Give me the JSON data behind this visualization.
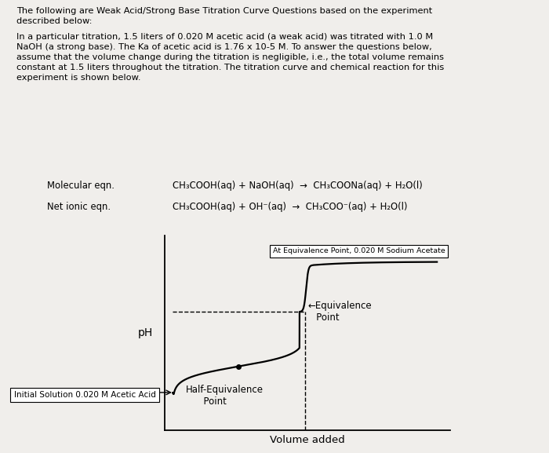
{
  "title_text": "The following are Weak Acid/Strong Base Titration Curve Questions based on the experiment\ndescribed below:",
  "body_text": "In a particular titration, 1.5 liters of 0.020 M acetic acid (a weak acid) was titrated with 1.0 M\nNaOH (a strong base). The Ka of acetic acid is 1.76 x 10-5 M. To answer the questions below,\nassume that the volume change during the titration is negligible, i.e., the total volume remains\nconstant at 1.5 liters throughout the titration. The titration curve and chemical reaction for this\nexperiment is shown below.",
  "molecular_label": "Molecular eqn.",
  "molecular_eq": "CH₃COOH(aq) + NaOH(aq)  →  CH₃COONa(aq) + H₂O(l)",
  "netionic_label": "Net ionic eqn.",
  "netionic_eq": "CH₃COOH(aq) + OH⁻(aq)  →  CH₃COO⁻(aq) + H₂O(l)",
  "xlabel": "Volume added",
  "ylabel": "pH",
  "annotation_eq_point": "←Equivalence\n   Point",
  "annotation_half_eq": "Half-Equivalence\n      Point",
  "annotation_initial": "Initial Solution 0.020 M Acetic Acid",
  "annotation_at_eq": "At Equivalence Point, 0.020 M Sodium Acetate",
  "bg_color": "#f0eeeb",
  "curve_color": "#000000"
}
